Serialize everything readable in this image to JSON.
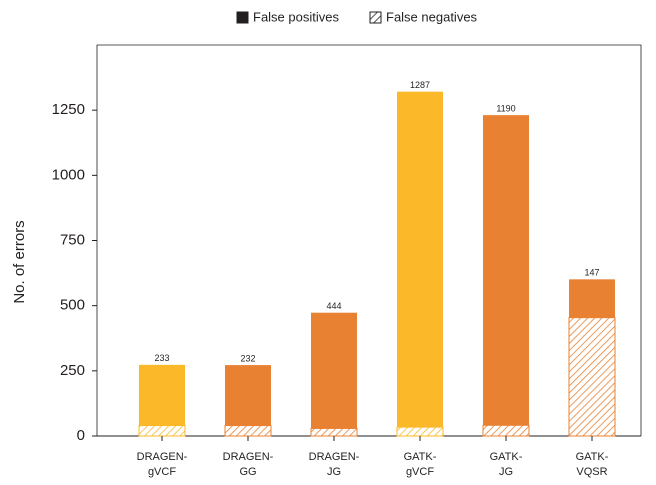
{
  "chart_data": {
    "type": "stacked-bar",
    "y_label": "No. of errors",
    "categories": [
      [
        "DRAGEN-",
        "gVCF"
      ],
      [
        "DRAGEN-",
        "GG"
      ],
      [
        "DRAGEN-",
        "JG"
      ],
      [
        "GATK-",
        "gVCF"
      ],
      [
        "GATK-",
        "JG"
      ],
      [
        "GATK-",
        "VQSR"
      ]
    ],
    "category_colors": [
      "#fbb92a",
      "#e98132",
      "#e98132",
      "#fbb92a",
      "#e98132",
      "#e98132"
    ],
    "series": [
      {
        "name": "False negatives",
        "color": "#231f20",
        "pattern": "hatch",
        "values": [
          40,
          40,
          29,
          34,
          41,
          454
        ]
      },
      {
        "name": "False positives",
        "color": "#231f20",
        "pattern": "solid",
        "values": [
          233,
          232,
          444,
          1287,
          1190,
          147
        ]
      }
    ],
    "ylim": [
      0,
      1500
    ],
    "yticks": [
      0,
      250,
      500,
      750,
      1000,
      1250
    ],
    "legend": "top"
  }
}
